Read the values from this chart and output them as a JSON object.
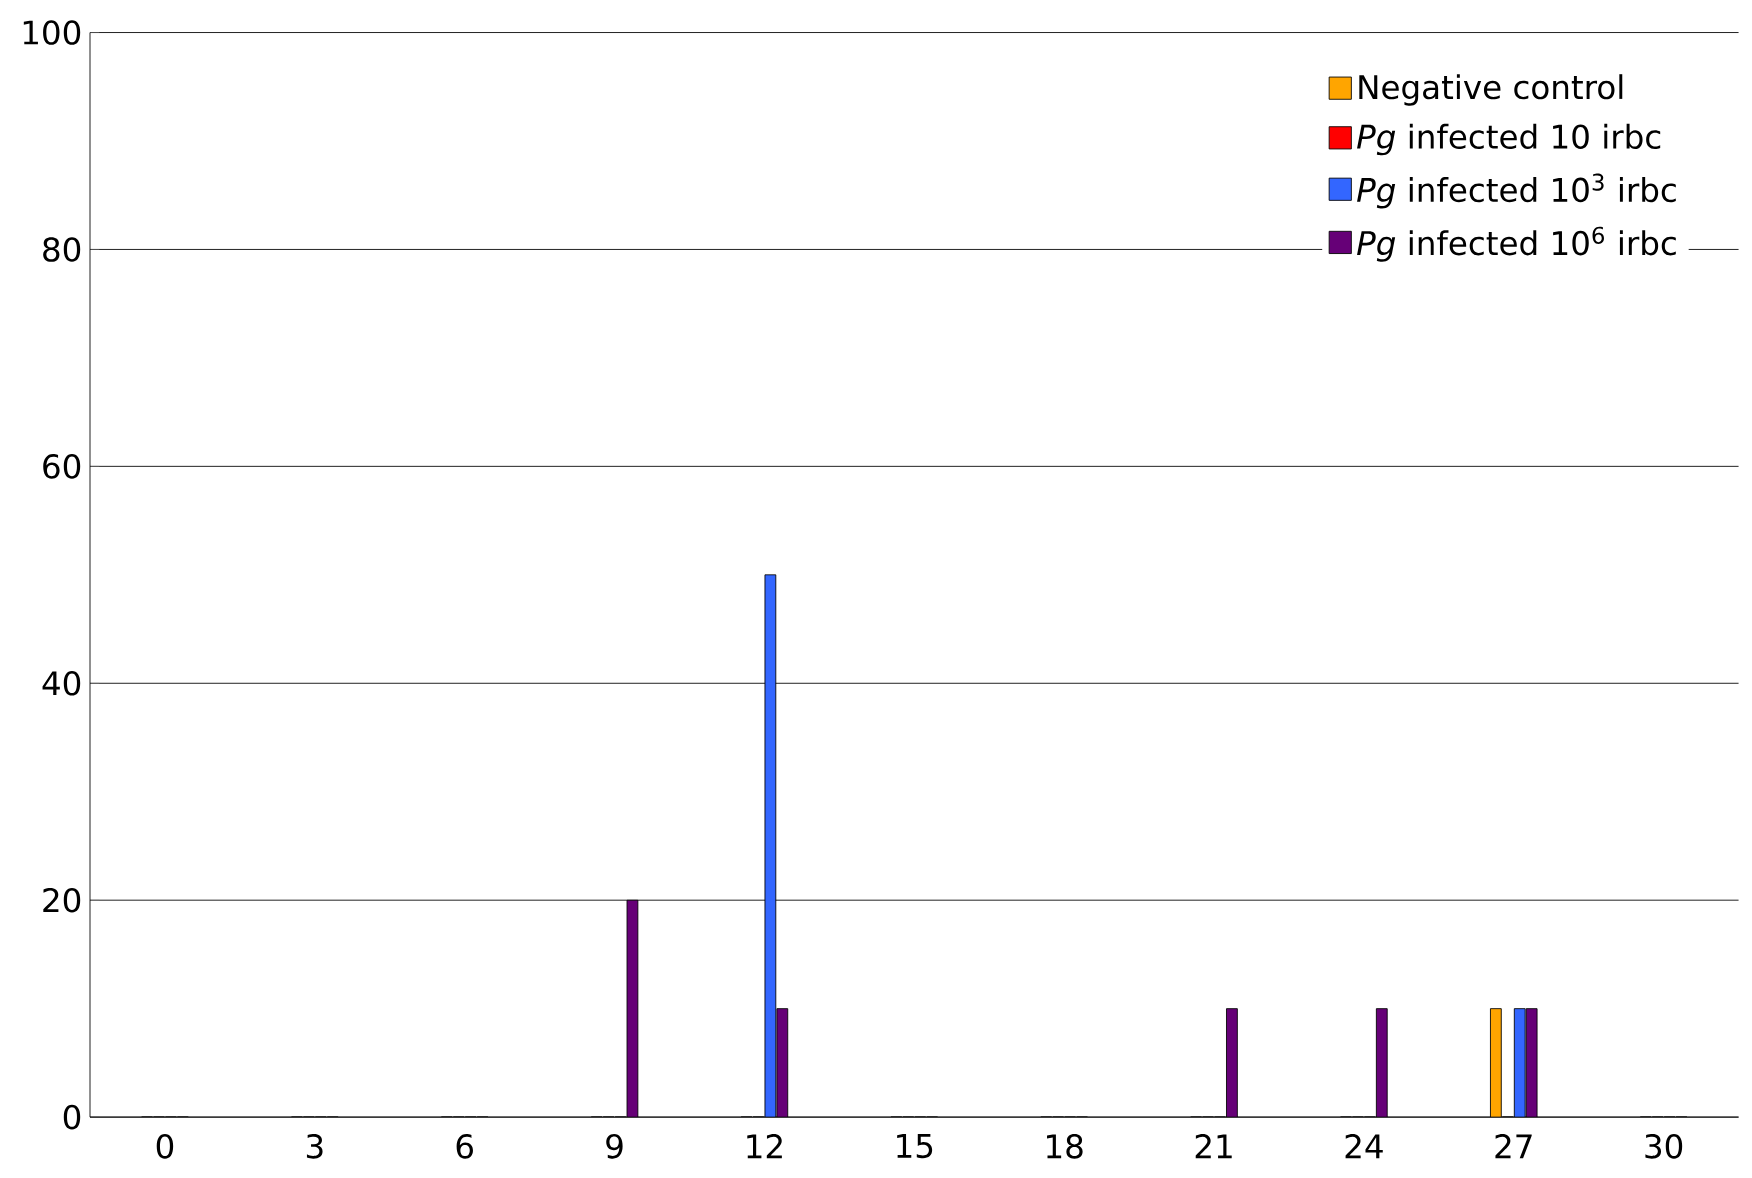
{
  "chart_data": {
    "type": "bar",
    "categories": [
      "0",
      "3",
      "6",
      "9",
      "12",
      "15",
      "18",
      "21",
      "24",
      "27",
      "30"
    ],
    "series": [
      {
        "name": "Negative control",
        "color": "#ffa500",
        "values": [
          0,
          0,
          0,
          0,
          0,
          0,
          0,
          0,
          0,
          10,
          0
        ]
      },
      {
        "name": "*Pg* infected 10 irbc",
        "color": "#ff0000",
        "values": [
          0,
          0,
          0,
          0,
          0,
          0,
          0,
          0,
          0,
          0,
          0
        ]
      },
      {
        "name": "*Pg* infected 10$^{3}$ irbc",
        "color": "#3366ff",
        "values": [
          0,
          0,
          0,
          0,
          50,
          0,
          0,
          0,
          0,
          10,
          0
        ]
      },
      {
        "name": "*Pg* infected 10$^{6}$ irbc",
        "color": "#660077",
        "values": [
          0,
          0,
          0,
          20,
          10,
          0,
          0,
          10,
          10,
          10,
          0
        ]
      }
    ],
    "ylim": [
      0,
      100
    ],
    "yticks": [
      0,
      20,
      40,
      60,
      80,
      100
    ],
    "grid": "y",
    "legend": "top right"
  }
}
